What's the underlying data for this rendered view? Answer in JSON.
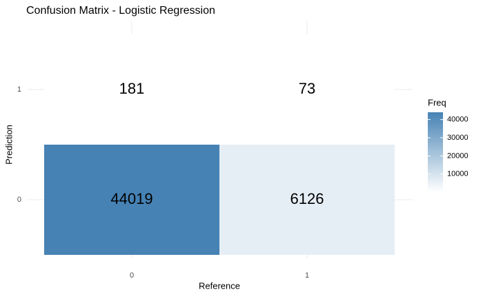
{
  "chart_data": {
    "type": "heatmap",
    "title": "Confusion Matrix - Logistic Regression",
    "x_label": "Reference",
    "y_label": "Prediction",
    "x_categories": [
      "0",
      "1"
    ],
    "y_categories": [
      "0",
      "1"
    ],
    "values": [
      [
        44019,
        6126
      ],
      [
        181,
        73
      ]
    ],
    "color_low": "#ffffff",
    "color_high": "#4682b4",
    "legend_title": "Freq",
    "zlim": [
      73,
      44019
    ],
    "zticks": [
      10000,
      20000,
      30000,
      40000
    ],
    "grid": true
  }
}
